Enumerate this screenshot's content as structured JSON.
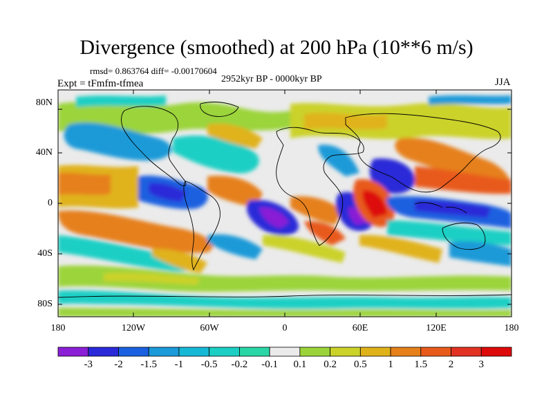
{
  "title": "Divergence (smoothed) at 200 hPa (10**6 m/s)",
  "stats": "rmsd= 0.863764 diff= -0.00170604",
  "period": "2952kyr BP - 0000kyr BP",
  "experiment": "Expt = tFmfm-tfmea",
  "season": "JJA",
  "lat_labels": [
    "80N",
    "40N",
    "0",
    "40S",
    "80S"
  ],
  "lon_labels": [
    "180",
    "120W",
    "60W",
    "0",
    "60E",
    "120E",
    "180"
  ],
  "colorbar": {
    "labels": [
      "-3",
      "-2",
      "-1.5",
      "-1",
      "-0.5",
      "-0.2",
      "-0.1",
      "0.1",
      "0.2",
      "0.5",
      "1",
      "1.5",
      "2",
      "3"
    ],
    "colors": [
      "#8a1fd6",
      "#2a2ad8",
      "#1a60e0",
      "#1a9ad8",
      "#16b8d6",
      "#1ccfc4",
      "#2ad6a6",
      "#ebebeb",
      "#9bd43a",
      "#cbd22a",
      "#e0b21a",
      "#e6801a",
      "#e85a1a",
      "#e23222",
      "#dd0a0a"
    ]
  }
}
